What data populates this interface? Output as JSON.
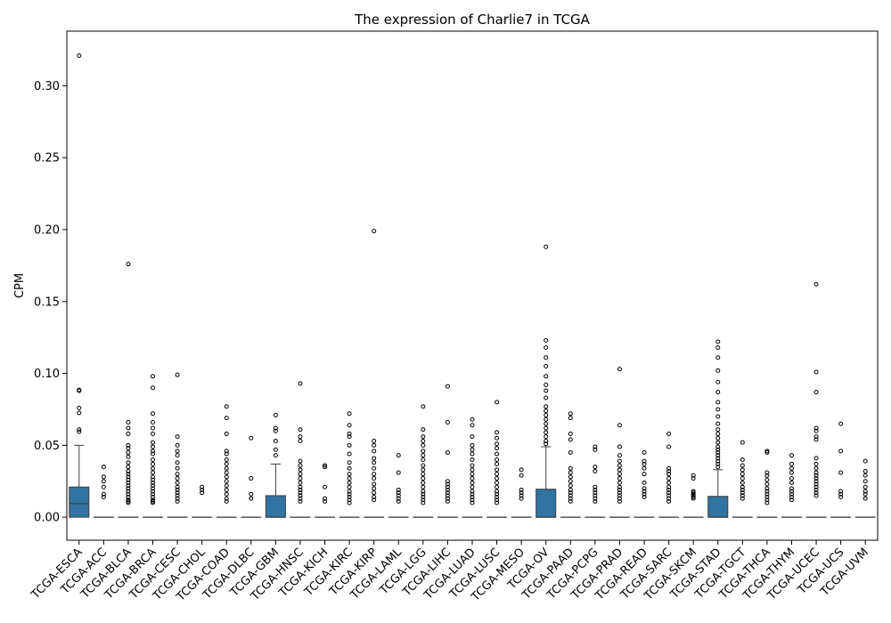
{
  "chart_data": {
    "type": "box",
    "title": "The expression of Charlie7 in TCGA",
    "xlabel": "",
    "ylabel": "CPM",
    "ylim": [
      -0.016,
      0.338
    ],
    "yticks": [
      0.0,
      0.05,
      0.1,
      0.15,
      0.2,
      0.25,
      0.3
    ],
    "ytick_labels": [
      "0.00",
      "0.05",
      "0.10",
      "0.15",
      "0.20",
      "0.25",
      "0.30"
    ],
    "box_color": "#3274a1",
    "grid": false,
    "categories": [
      "TCGA-ESCA",
      "TCGA-ACC",
      "TCGA-BLCA",
      "TCGA-BRCA",
      "TCGA-CESC",
      "TCGA-CHOL",
      "TCGA-COAD",
      "TCGA-DLBC",
      "TCGA-GBM",
      "TCGA-HNSC",
      "TCGA-KICH",
      "TCGA-KIRC",
      "TCGA-KIRP",
      "TCGA-LAML",
      "TCGA-LGG",
      "TCGA-LIHC",
      "TCGA-LUAD",
      "TCGA-LUSC",
      "TCGA-MESO",
      "TCGA-OV",
      "TCGA-PAAD",
      "TCGA-PCPG",
      "TCGA-PRAD",
      "TCGA-READ",
      "TCGA-SARC",
      "TCGA-SKCM",
      "TCGA-STAD",
      "TCGA-TGCT",
      "TCGA-THCA",
      "TCGA-THYM",
      "TCGA-UCEC",
      "TCGA-UCS",
      "TCGA-UVM"
    ],
    "boxes": [
      {
        "q1": 0,
        "median": 0.0095,
        "q3": 0.021,
        "whislo": 0,
        "whishi": 0.05,
        "fliers": [
          0.321,
          0.0885,
          0.088,
          0.076,
          0.0725,
          0.061,
          0.0595
        ]
      },
      {
        "q1": 0,
        "median": 0,
        "q3": 0,
        "whislo": 0,
        "whishi": 0,
        "fliers": [
          0.035,
          0.028,
          0.025,
          0.021,
          0.016,
          0.014
        ]
      },
      {
        "q1": 0,
        "median": 0,
        "q3": 0,
        "whislo": 0,
        "whishi": 0,
        "fliers": [
          0.176,
          0.066,
          0.062,
          0.058,
          0.05,
          0.048,
          0.045,
          0.042,
          0.038,
          0.035,
          0.032,
          0.03,
          0.028,
          0.026,
          0.024,
          0.022,
          0.02,
          0.018,
          0.016,
          0.014,
          0.012,
          0.011,
          0.01
        ]
      },
      {
        "q1": 0,
        "median": 0,
        "q3": 0,
        "whislo": 0,
        "whishi": 0,
        "fliers": [
          0.098,
          0.09,
          0.072,
          0.066,
          0.062,
          0.058,
          0.052,
          0.049,
          0.046,
          0.044,
          0.04,
          0.037,
          0.034,
          0.031,
          0.028,
          0.026,
          0.024,
          0.022,
          0.02,
          0.018,
          0.016,
          0.014,
          0.012,
          0.011,
          0.01
        ]
      },
      {
        "q1": 0,
        "median": 0,
        "q3": 0,
        "whislo": 0,
        "whishi": 0,
        "fliers": [
          0.099,
          0.056,
          0.05,
          0.046,
          0.043,
          0.038,
          0.034,
          0.03,
          0.027,
          0.024,
          0.021,
          0.019,
          0.017,
          0.015,
          0.013,
          0.011
        ]
      },
      {
        "q1": 0,
        "median": 0,
        "q3": 0,
        "whislo": 0,
        "whishi": 0,
        "fliers": [
          0.021,
          0.019,
          0.017
        ]
      },
      {
        "q1": 0,
        "median": 0,
        "q3": 0,
        "whislo": 0,
        "whishi": 0,
        "fliers": [
          0.077,
          0.069,
          0.058,
          0.046,
          0.044,
          0.04,
          0.037,
          0.034,
          0.031,
          0.028,
          0.025,
          0.022,
          0.019,
          0.016,
          0.013,
          0.011
        ]
      },
      {
        "q1": 0,
        "median": 0,
        "q3": 0,
        "whislo": 0,
        "whishi": 0,
        "fliers": [
          0.055,
          0.027,
          0.016,
          0.013
        ]
      },
      {
        "q1": 0,
        "median": 0,
        "q3": 0.015,
        "whislo": 0,
        "whishi": 0.037,
        "fliers": [
          0.071,
          0.062,
          0.06,
          0.053,
          0.047,
          0.043
        ]
      },
      {
        "q1": 0,
        "median": 0,
        "q3": 0,
        "whislo": 0,
        "whishi": 0,
        "fliers": [
          0.093,
          0.061,
          0.056,
          0.053,
          0.039,
          0.036,
          0.033,
          0.03,
          0.027,
          0.024,
          0.021,
          0.019,
          0.017,
          0.015,
          0.013,
          0.011
        ]
      },
      {
        "q1": 0,
        "median": 0,
        "q3": 0,
        "whislo": 0,
        "whishi": 0,
        "fliers": [
          0.036,
          0.035,
          0.021,
          0.013,
          0.011
        ]
      },
      {
        "q1": 0,
        "median": 0,
        "q3": 0,
        "whislo": 0,
        "whishi": 0,
        "fliers": [
          0.072,
          0.064,
          0.058,
          0.056,
          0.05,
          0.044,
          0.038,
          0.034,
          0.03,
          0.027,
          0.024,
          0.021,
          0.018,
          0.016,
          0.014,
          0.012,
          0.01
        ]
      },
      {
        "q1": 0,
        "median": 0,
        "q3": 0,
        "whislo": 0,
        "whishi": 0,
        "fliers": [
          0.199,
          0.053,
          0.05,
          0.046,
          0.041,
          0.038,
          0.034,
          0.03,
          0.027,
          0.023,
          0.02,
          0.017,
          0.014,
          0.012
        ]
      },
      {
        "q1": 0,
        "median": 0,
        "q3": 0,
        "whislo": 0,
        "whishi": 0,
        "fliers": [
          0.043,
          0.031,
          0.019,
          0.017,
          0.015,
          0.013,
          0.011
        ]
      },
      {
        "q1": 0,
        "median": 0,
        "q3": 0,
        "whislo": 0,
        "whishi": 0,
        "fliers": [
          0.077,
          0.061,
          0.056,
          0.053,
          0.05,
          0.046,
          0.043,
          0.04,
          0.036,
          0.033,
          0.03,
          0.027,
          0.024,
          0.021,
          0.018,
          0.016,
          0.014,
          0.012,
          0.01
        ]
      },
      {
        "q1": 0,
        "median": 0,
        "q3": 0,
        "whislo": 0,
        "whishi": 0,
        "fliers": [
          0.091,
          0.066,
          0.045,
          0.025,
          0.023,
          0.021,
          0.019,
          0.017,
          0.015,
          0.013,
          0.011
        ]
      },
      {
        "q1": 0,
        "median": 0,
        "q3": 0,
        "whislo": 0,
        "whishi": 0,
        "fliers": [
          0.068,
          0.064,
          0.056,
          0.05,
          0.047,
          0.044,
          0.04,
          0.036,
          0.033,
          0.03,
          0.027,
          0.024,
          0.021,
          0.018,
          0.016,
          0.014,
          0.012,
          0.01
        ]
      },
      {
        "q1": 0,
        "median": 0,
        "q3": 0,
        "whislo": 0,
        "whishi": 0,
        "fliers": [
          0.08,
          0.059,
          0.055,
          0.051,
          0.048,
          0.044,
          0.04,
          0.037,
          0.033,
          0.03,
          0.027,
          0.024,
          0.021,
          0.018,
          0.016,
          0.014,
          0.012,
          0.01
        ]
      },
      {
        "q1": 0,
        "median": 0,
        "q3": 0,
        "whislo": 0,
        "whishi": 0,
        "fliers": [
          0.033,
          0.029,
          0.019,
          0.017,
          0.015,
          0.013
        ]
      },
      {
        "q1": 0,
        "median": 0,
        "q3": 0.0195,
        "whislo": 0,
        "whishi": 0.049,
        "fliers": [
          0.188,
          0.123,
          0.118,
          0.111,
          0.105,
          0.098,
          0.092,
          0.088,
          0.083,
          0.077,
          0.074,
          0.071,
          0.068,
          0.065,
          0.062,
          0.059,
          0.056,
          0.053,
          0.051
        ]
      },
      {
        "q1": 0,
        "median": 0,
        "q3": 0,
        "whislo": 0,
        "whishi": 0,
        "fliers": [
          0.072,
          0.069,
          0.058,
          0.054,
          0.045,
          0.034,
          0.031,
          0.028,
          0.025,
          0.022,
          0.019,
          0.017,
          0.015,
          0.013,
          0.011
        ]
      },
      {
        "q1": 0,
        "median": 0,
        "q3": 0,
        "whislo": 0,
        "whishi": 0,
        "fliers": [
          0.049,
          0.047,
          0.035,
          0.032,
          0.021,
          0.019,
          0.017,
          0.015,
          0.013,
          0.011
        ]
      },
      {
        "q1": 0,
        "median": 0,
        "q3": 0,
        "whislo": 0,
        "whishi": 0,
        "fliers": [
          0.103,
          0.064,
          0.049,
          0.043,
          0.039,
          0.036,
          0.033,
          0.03,
          0.027,
          0.024,
          0.021,
          0.019,
          0.017,
          0.015,
          0.013,
          0.011
        ]
      },
      {
        "q1": 0,
        "median": 0,
        "q3": 0,
        "whislo": 0,
        "whishi": 0,
        "fliers": [
          0.045,
          0.039,
          0.037,
          0.034,
          0.03,
          0.024,
          0.02,
          0.018,
          0.016,
          0.014
        ]
      },
      {
        "q1": 0,
        "median": 0,
        "q3": 0,
        "whislo": 0,
        "whishi": 0,
        "fliers": [
          0.058,
          0.049,
          0.034,
          0.032,
          0.03,
          0.027,
          0.024,
          0.021,
          0.019,
          0.017,
          0.015,
          0.013,
          0.011
        ]
      },
      {
        "q1": 0,
        "median": 0,
        "q3": 0,
        "whislo": 0,
        "whishi": 0,
        "fliers": [
          0.029,
          0.027,
          0.018,
          0.017,
          0.016,
          0.015,
          0.014,
          0.013
        ]
      },
      {
        "q1": 0,
        "median": 0,
        "q3": 0.0145,
        "whislo": 0,
        "whishi": 0.033,
        "fliers": [
          0.122,
          0.118,
          0.111,
          0.102,
          0.094,
          0.087,
          0.08,
          0.075,
          0.07,
          0.065,
          0.061,
          0.058,
          0.055,
          0.052,
          0.049,
          0.047,
          0.045,
          0.043,
          0.041,
          0.039,
          0.037,
          0.035
        ]
      },
      {
        "q1": 0,
        "median": 0,
        "q3": 0,
        "whislo": 0,
        "whishi": 0,
        "fliers": [
          0.052,
          0.04,
          0.036,
          0.033,
          0.03,
          0.027,
          0.024,
          0.021,
          0.019,
          0.017,
          0.015,
          0.013
        ]
      },
      {
        "q1": 0,
        "median": 0,
        "q3": 0,
        "whislo": 0,
        "whishi": 0,
        "fliers": [
          0.046,
          0.045,
          0.031,
          0.029,
          0.026,
          0.023,
          0.02,
          0.018,
          0.016,
          0.014,
          0.012,
          0.01
        ]
      },
      {
        "q1": 0,
        "median": 0,
        "q3": 0,
        "whislo": 0,
        "whishi": 0,
        "fliers": [
          0.043,
          0.037,
          0.034,
          0.031,
          0.027,
          0.024,
          0.02,
          0.018,
          0.016,
          0.014,
          0.012
        ]
      },
      {
        "q1": 0,
        "median": 0,
        "q3": 0,
        "whislo": 0,
        "whishi": 0,
        "fliers": [
          0.162,
          0.101,
          0.087,
          0.062,
          0.06,
          0.056,
          0.054,
          0.041,
          0.037,
          0.034,
          0.031,
          0.029,
          0.027,
          0.025,
          0.023,
          0.021,
          0.019,
          0.017,
          0.015
        ]
      },
      {
        "q1": 0,
        "median": 0,
        "q3": 0,
        "whislo": 0,
        "whishi": 0,
        "fliers": [
          0.065,
          0.046,
          0.031,
          0.018,
          0.016,
          0.014
        ]
      },
      {
        "q1": 0,
        "median": 0,
        "q3": 0,
        "whislo": 0,
        "whishi": 0,
        "fliers": [
          0.039,
          0.032,
          0.029,
          0.025,
          0.021,
          0.018,
          0.016,
          0.013
        ]
      }
    ]
  }
}
